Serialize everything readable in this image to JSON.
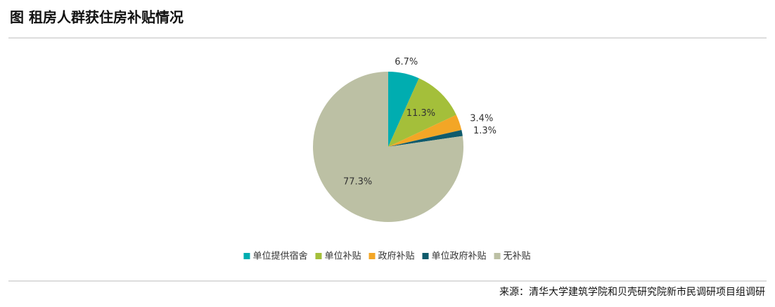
{
  "chart_data": {
    "type": "pie",
    "title": "图  租房人群获住房补贴情况",
    "source": "来源：清华大学建筑学院和贝壳研究院新市民调研项目组调研",
    "categories": [
      "单位提供宿舍",
      "单位补贴",
      "政府补贴",
      "单位政府补贴",
      "无补贴"
    ],
    "values": [
      6.7,
      11.3,
      3.4,
      1.3,
      77.3
    ],
    "value_labels": [
      "6.7%",
      "11.3%",
      "3.4%",
      "1.3%",
      "77.3%"
    ],
    "colors": [
      "#00adb0",
      "#a4bf3a",
      "#f3a626",
      "#0f5b6c",
      "#bcc0a4"
    ],
    "legend": "bottom"
  }
}
